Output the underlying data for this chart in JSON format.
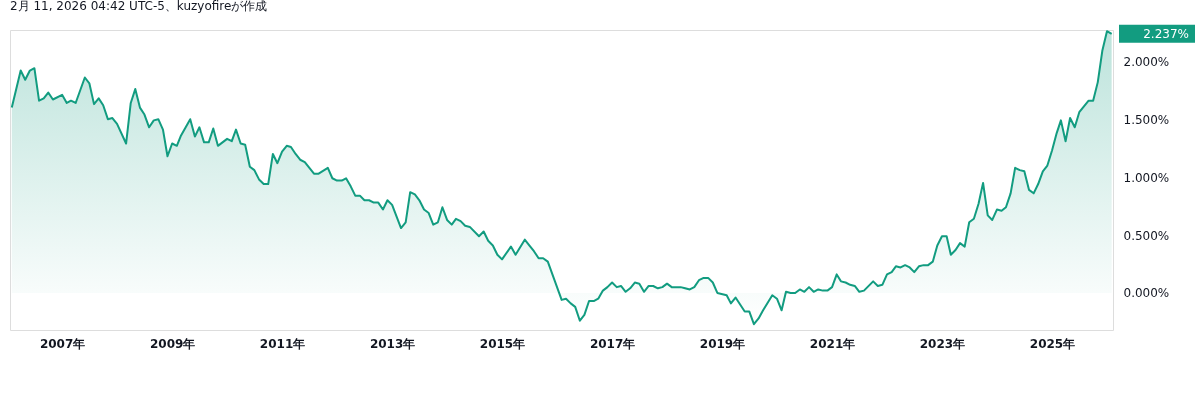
{
  "chart_data": {
    "type": "area",
    "title": "2月 11, 2026 04:42 UTC-5、kuzyofireが作成",
    "x": [
      "2006-02",
      "2006-04",
      "2006-05",
      "2006-06",
      "2006-07",
      "2006-08",
      "2006-09",
      "2006-10",
      "2006-11",
      "2007-01",
      "2007-02",
      "2007-03",
      "2007-04",
      "2007-06",
      "2007-07",
      "2007-08",
      "2007-09",
      "2007-10",
      "2007-11",
      "2007-12",
      "2008-01",
      "2008-03",
      "2008-04",
      "2008-05",
      "2008-06",
      "2008-07",
      "2008-08",
      "2008-09",
      "2008-10",
      "2008-11",
      "2008-12",
      "2009-01",
      "2009-02",
      "2009-03",
      "2009-05",
      "2009-06",
      "2009-07",
      "2009-08",
      "2009-09",
      "2009-10",
      "2009-11",
      "2010-01",
      "2010-02",
      "2010-03",
      "2010-04",
      "2010-05",
      "2010-06",
      "2010-07",
      "2010-08",
      "2010-09",
      "2010-10",
      "2010-11",
      "2010-12",
      "2011-01",
      "2011-02",
      "2011-03",
      "2011-04",
      "2011-05",
      "2011-06",
      "2011-08",
      "2011-09",
      "2011-11",
      "2011-12",
      "2012-01",
      "2012-02",
      "2012-03",
      "2012-04",
      "2012-05",
      "2012-06",
      "2012-07",
      "2012-08",
      "2012-09",
      "2012-10",
      "2012-11",
      "2012-12",
      "2013-01",
      "2013-03",
      "2013-04",
      "2013-05",
      "2013-06",
      "2013-07",
      "2013-08",
      "2013-09",
      "2013-10",
      "2013-11",
      "2013-12",
      "2014-01",
      "2014-02",
      "2014-03",
      "2014-04",
      "2014-05",
      "2014-06",
      "2014-08",
      "2014-09",
      "2014-10",
      "2014-11",
      "2014-12",
      "2015-01",
      "2015-03",
      "2015-04",
      "2015-06",
      "2015-07",
      "2015-08",
      "2015-09",
      "2015-10",
      "2015-11",
      "2016-02",
      "2016-03",
      "2016-04",
      "2016-05",
      "2016-06",
      "2016-07",
      "2016-08",
      "2016-09",
      "2016-10",
      "2016-11",
      "2016-12",
      "2017-01",
      "2017-02",
      "2017-03",
      "2017-04",
      "2017-05",
      "2017-06",
      "2017-07",
      "2017-08",
      "2017-09",
      "2017-10",
      "2017-11",
      "2017-12",
      "2018-01",
      "2018-02",
      "2018-04",
      "2018-05",
      "2018-06",
      "2018-07",
      "2018-08",
      "2018-09",
      "2018-10",
      "2018-11",
      "2018-12",
      "2019-02",
      "2019-03",
      "2019-04",
      "2019-06",
      "2019-07",
      "2019-08",
      "2019-09",
      "2019-10",
      "2019-12",
      "2020-01",
      "2020-02",
      "2020-03",
      "2020-04",
      "2020-05",
      "2020-06",
      "2020-07",
      "2020-08",
      "2020-09",
      "2020-10",
      "2020-11",
      "2020-12",
      "2021-01",
      "2021-02",
      "2021-03",
      "2021-04",
      "2021-05",
      "2021-06",
      "2021-07",
      "2021-08",
      "2021-10",
      "2021-11",
      "2021-12",
      "2022-01",
      "2022-02",
      "2022-03",
      "2022-04",
      "2022-05",
      "2022-06",
      "2022-07",
      "2022-08",
      "2022-09",
      "2022-10",
      "2022-11",
      "2022-12",
      "2023-01",
      "2023-02",
      "2023-03",
      "2023-04",
      "2023-05",
      "2023-06",
      "2023-07",
      "2023-08",
      "2023-09",
      "2023-10",
      "2023-11",
      "2023-12",
      "2024-01",
      "2024-02",
      "2024-03",
      "2024-04",
      "2024-05",
      "2024-06",
      "2024-07",
      "2024-08",
      "2024-09",
      "2024-10",
      "2024-11",
      "2024-12",
      "2025-01",
      "2025-02",
      "2025-03",
      "2025-04",
      "2025-05",
      "2025-06",
      "2025-07",
      "2025-08",
      "2025-09",
      "2025-10",
      "2025-11",
      "2025-12",
      "2026-01",
      "2026-02"
    ],
    "series": [
      {
        "color": "#129c80",
        "values": [
          1.6,
          1.92,
          1.84,
          1.92,
          1.94,
          1.66,
          1.68,
          1.73,
          1.67,
          1.71,
          1.64,
          1.66,
          1.64,
          1.86,
          1.81,
          1.63,
          1.68,
          1.62,
          1.5,
          1.51,
          1.46,
          1.29,
          1.64,
          1.76,
          1.6,
          1.54,
          1.43,
          1.49,
          1.5,
          1.41,
          1.18,
          1.29,
          1.27,
          1.36,
          1.5,
          1.35,
          1.43,
          1.3,
          1.3,
          1.42,
          1.27,
          1.33,
          1.31,
          1.41,
          1.29,
          1.28,
          1.09,
          1.06,
          0.98,
          0.94,
          0.94,
          1.2,
          1.12,
          1.22,
          1.27,
          1.26,
          1.2,
          1.15,
          1.13,
          1.03,
          1.03,
          1.08,
          0.99,
          0.97,
          0.97,
          0.99,
          0.92,
          0.84,
          0.84,
          0.8,
          0.8,
          0.78,
          0.78,
          0.72,
          0.8,
          0.76,
          0.56,
          0.61,
          0.87,
          0.85,
          0.8,
          0.72,
          0.69,
          0.59,
          0.61,
          0.74,
          0.63,
          0.59,
          0.64,
          0.62,
          0.58,
          0.57,
          0.49,
          0.53,
          0.45,
          0.41,
          0.33,
          0.29,
          0.4,
          0.33,
          0.46,
          0.41,
          0.36,
          0.3,
          0.3,
          0.27,
          -0.06,
          -0.05,
          -0.09,
          -0.12,
          -0.24,
          -0.19,
          -0.07,
          -0.07,
          -0.05,
          0.02,
          0.05,
          0.09,
          0.05,
          0.06,
          0.01,
          0.04,
          0.09,
          0.08,
          0.01,
          0.06,
          0.06,
          0.04,
          0.05,
          0.08,
          0.05,
          0.05,
          0.04,
          0.03,
          0.05,
          0.11,
          0.13,
          0.13,
          0.09,
          0.0,
          -0.02,
          -0.09,
          -0.04,
          -0.16,
          -0.16,
          -0.27,
          -0.22,
          -0.15,
          -0.02,
          -0.05,
          -0.15,
          0.01,
          0.0,
          0.0,
          0.03,
          0.01,
          0.05,
          0.01,
          0.03,
          0.02,
          0.02,
          0.05,
          0.16,
          0.1,
          0.09,
          0.07,
          0.06,
          0.01,
          0.02,
          0.1,
          0.06,
          0.07,
          0.16,
          0.18,
          0.23,
          0.22,
          0.24,
          0.22,
          0.18,
          0.23,
          0.24,
          0.24,
          0.27,
          0.41,
          0.49,
          0.49,
          0.33,
          0.37,
          0.43,
          0.4,
          0.61,
          0.64,
          0.77,
          0.95,
          0.67,
          0.63,
          0.72,
          0.71,
          0.74,
          0.86,
          1.08,
          1.06,
          1.05,
          0.89,
          0.86,
          0.94,
          1.05,
          1.1,
          1.23,
          1.38,
          1.49,
          1.31,
          1.51,
          1.43,
          1.56,
          1.61,
          1.66,
          1.66,
          1.82,
          2.09,
          2.26,
          2.237
        ]
      }
    ],
    "xlim": [
      "2006-01-20",
      "2026-02-10"
    ],
    "xticks": [
      {
        "value": "2007",
        "label": "2007年"
      },
      {
        "value": "2009",
        "label": "2009年"
      },
      {
        "value": "2011",
        "label": "2011年"
      },
      {
        "value": "2013",
        "label": "2013年"
      },
      {
        "value": "2015",
        "label": "2015年"
      },
      {
        "value": "2017",
        "label": "2017年"
      },
      {
        "value": "2019",
        "label": "2019年"
      },
      {
        "value": "2021",
        "label": "2021年"
      },
      {
        "value": "2023",
        "label": "2023年"
      },
      {
        "value": "2025",
        "label": "2025年"
      }
    ],
    "ylim": [
      -0.32,
      2.27
    ],
    "yticks": [
      {
        "value": 0,
        "label": "0.000%"
      },
      {
        "value": 0.5,
        "label": "0.500%"
      },
      {
        "value": 1,
        "label": "1.000%"
      },
      {
        "value": 1.5,
        "label": "1.500%"
      },
      {
        "value": 2,
        "label": "2.000%"
      }
    ],
    "annotations": [
      {
        "text": "2.237%",
        "x": "2026-02",
        "y": 2.237
      }
    ],
    "grid": false
  }
}
